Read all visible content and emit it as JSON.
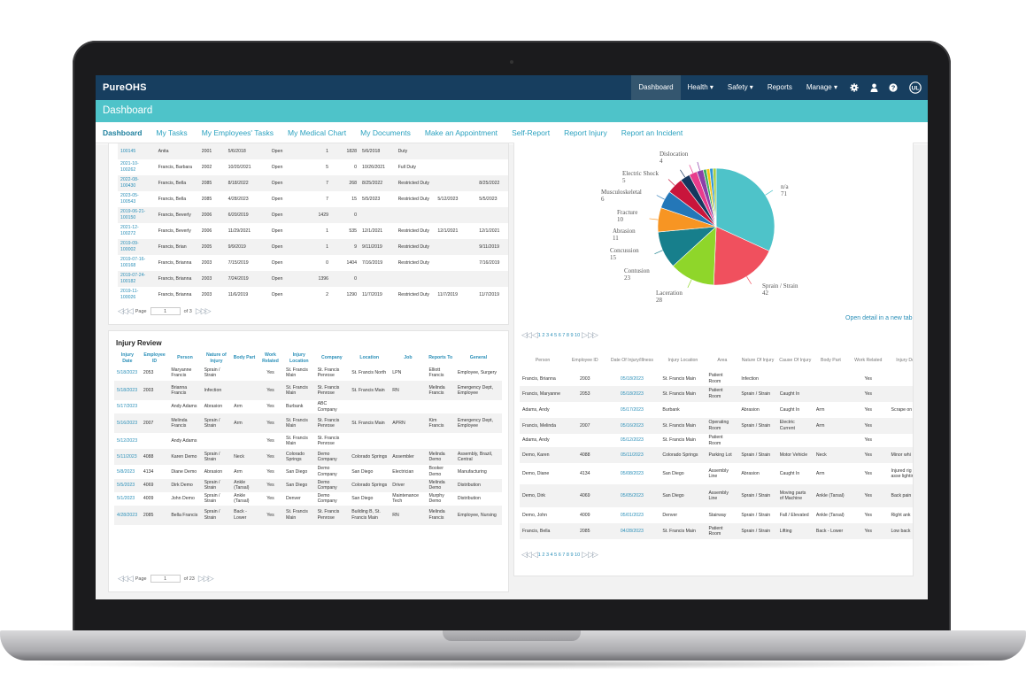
{
  "app": {
    "logo": "PureOHS",
    "nav": [
      {
        "label": "Dashboard",
        "active": true
      },
      {
        "label": "Health ▾"
      },
      {
        "label": "Safety ▾"
      },
      {
        "label": "Reports"
      },
      {
        "label": "Manage ▾"
      }
    ],
    "nav_icons": [
      "gear-icon",
      "user-icon",
      "help-icon",
      "ul-logo-icon"
    ],
    "page_title": "Dashboard",
    "accent": "#4ec3c9",
    "navbar_color": "#173e5f"
  },
  "tabs": [
    "Dashboard",
    "My Tasks",
    "My Employees' Tasks",
    "My Medical Chart",
    "My Documents",
    "Make an Appointment",
    "Self-Report",
    "Report Injury",
    "Report an Incident"
  ],
  "top_left_table": {
    "rows": [
      [
        "100145",
        "Anita",
        "2001",
        "5/6/2018",
        "Open",
        "1",
        "1828",
        "5/6/2018",
        "Duty",
        "",
        ""
      ],
      [
        "2021-10-100262",
        "Francis, Barbara",
        "2002",
        "10/20/2021",
        "Open",
        "5",
        "0",
        "10/26/2021",
        "Full Duty",
        "",
        ""
      ],
      [
        "2022-08-100430",
        "Francis, Bella",
        "2085",
        "8/18/2022",
        "Open",
        "7",
        "268",
        "8/25/2022",
        "Restricted Duty",
        "",
        "8/25/2022"
      ],
      [
        "2023-05-100543",
        "Francis, Bella",
        "2085",
        "4/28/2023",
        "Open",
        "7",
        "15",
        "5/5/2023",
        "Restricted Duty",
        "5/12/2023",
        "5/5/2023"
      ],
      [
        "2019-06-21-100150",
        "Francis, Beverly",
        "2006",
        "6/20/2019",
        "Open",
        "1429",
        "0",
        "",
        "",
        "",
        ""
      ],
      [
        "2021-12-100272",
        "Francis, Beverly",
        "2006",
        "11/29/2021",
        "Open",
        "1",
        "535",
        "12/1/2021",
        "Restricted Duty",
        "12/1/2021",
        "12/1/2021"
      ],
      [
        "2019-09-100002",
        "Francis, Brian",
        "2005",
        "9/9/2019",
        "Open",
        "1",
        "9",
        "9/11/2019",
        "Restricted Duty",
        "",
        "9/11/2019"
      ],
      [
        "2019-07-16-100168",
        "Francis, Brianna",
        "2003",
        "7/15/2019",
        "Open",
        "0",
        "1404",
        "7/16/2019",
        "Restricted Duty",
        "",
        "7/16/2019"
      ],
      [
        "2019-07-24-100182",
        "Francis, Brianna",
        "2003",
        "7/24/2019",
        "Open",
        "1396",
        "0",
        "",
        "",
        "",
        ""
      ],
      [
        "2019-11-100026",
        "Francis, Brianna",
        "2003",
        "11/6/2019",
        "Open",
        "2",
        "1290",
        "11/7/2019",
        "Restricted Duty",
        "11/7/2019",
        "11/7/2019"
      ]
    ],
    "pager": {
      "label": "Page",
      "page": "1",
      "of": "of 3"
    }
  },
  "injury_review": {
    "title": "Injury Review",
    "columns": [
      "Injury Date",
      "Employee ID",
      "Person",
      "Nature of Injury",
      "Body Part",
      "Work Related",
      "Injury Location",
      "Company",
      "Location",
      "Job",
      "Reports To",
      "General"
    ],
    "rows": [
      [
        "5/18/2023",
        "2053",
        "Maryanne Francis",
        "Sprain / Strain",
        "",
        "Yes",
        "St. Francis Main",
        "St. Francis Penrose",
        "St. Francis North",
        "LPN",
        "Elliott Francis",
        "Employee, Surgery"
      ],
      [
        "5/18/2023",
        "2003",
        "Brianna Francis",
        "Infection",
        "",
        "Yes",
        "St. Francis Main",
        "St. Francis Penrose",
        "St. Francis Main",
        "RN",
        "Melinda Francis",
        "Emergency Dept, Employee"
      ],
      [
        "5/17/2023",
        "",
        "Andy Adams",
        "Abrasion",
        "Arm",
        "Yes",
        "Burbank",
        "ABC Company",
        "",
        "",
        "",
        ""
      ],
      [
        "5/16/2023",
        "2007",
        "Melinda Francis",
        "Sprain / Strain",
        "Arm",
        "Yes",
        "St. Francis Main",
        "St. Francis Penrose",
        "St. Francis Main",
        "APRN",
        "Kim Francis",
        "Emergency Dept, Employee"
      ],
      [
        "5/12/2023",
        "",
        "Andy Adams",
        "",
        "",
        "Yes",
        "St. Francis Main",
        "St. Francis Penrose",
        "",
        "",
        "",
        ""
      ],
      [
        "5/11/2023",
        "4088",
        "Karen Demo",
        "Sprain / Strain",
        "Neck",
        "Yes",
        "Colorado Springs",
        "Demo Company",
        "Colorado Springs",
        "Assembler",
        "Melinda Demo",
        "Assembly, Brazil, Central"
      ],
      [
        "5/8/2023",
        "4134",
        "Diane Demo",
        "Abrasion",
        "Arm",
        "Yes",
        "San Diego",
        "Demo Company",
        "San Diego",
        "Electrician",
        "Booker Demo",
        "Manufacturing"
      ],
      [
        "5/5/2023",
        "4069",
        "Dirk Demo",
        "Sprain / Strain",
        "Ankle (Tarsal)",
        "Yes",
        "San Diego",
        "Demo Company",
        "Colorado Springs",
        "Driver",
        "Melinda Demo",
        "Distribution"
      ],
      [
        "5/1/2023",
        "4009",
        "John Demo",
        "Sprain / Strain",
        "Ankle (Tarsal)",
        "Yes",
        "Denver",
        "Demo Company",
        "San Diego",
        "Maintenance Tech",
        "Murphy Demo",
        "Distribution"
      ],
      [
        "4/28/2023",
        "2085",
        "Bella Francis",
        "Sprain / Strain",
        "Back - Lower",
        "Yes",
        "St. Francis Main",
        "St. Francis Penrose",
        "Building B, St. Francis Main",
        "RN",
        "Melinda Francis",
        "Employee, Nursing"
      ]
    ],
    "pager": {
      "label": "Page",
      "page": "1",
      "of": "of 23"
    }
  },
  "chart_data": {
    "type": "pie",
    "slices": [
      {
        "label": "n/a",
        "value": 71,
        "color": "#4ec3c9"
      },
      {
        "label": "Sprain / Strain",
        "value": 42,
        "color": "#f0505e"
      },
      {
        "label": "Laceration",
        "value": 28,
        "color": "#8fd62a"
      },
      {
        "label": "Contusion",
        "value": 23,
        "color": "#177f8c"
      },
      {
        "label": "Concussion",
        "value": 15,
        "color": "#f79523"
      },
      {
        "label": "Abrasion",
        "value": 11,
        "color": "#2477b8"
      },
      {
        "label": "Fracture",
        "value": 10,
        "color": "#c9153b"
      },
      {
        "label": "Musculoskeletal",
        "value": 6,
        "color": "#15375e"
      },
      {
        "label": "Electric Shock",
        "value": 5,
        "color": "#e83c8c"
      },
      {
        "label": "Dislocation",
        "value": 4,
        "color": "#8b3fa8"
      },
      {
        "label": "",
        "value": 2,
        "color": "#3fb060"
      },
      {
        "label": "",
        "value": 2,
        "color": "#f5c518"
      },
      {
        "label": "",
        "value": 2,
        "color": "#2f95d8"
      },
      {
        "label": "",
        "value": 2,
        "color": "#a8d048"
      }
    ]
  },
  "right_panel": {
    "open_detail": "Open detail in a new tab",
    "page_numbers": "1 2 3 4 5 6 7 8 9 10",
    "columns": [
      "Person",
      "Employee ID",
      "Date Of Injury/Illness",
      "Injury Location",
      "Area",
      "Nature Of Injury",
      "Cause Of Injury",
      "Body Part",
      "Work Related",
      "Injury Desc"
    ],
    "rows": [
      [
        "Francis, Brianna",
        "2003",
        "05/18/2023",
        "St. Francis Main",
        "Patient Room",
        "Infection",
        "",
        "",
        "Yes",
        ""
      ],
      [
        "Francis, Maryanne",
        "2053",
        "05/18/2023",
        "St. Francis Main",
        "Patient Room",
        "Sprain / Strain",
        "Caught In",
        "",
        "Yes",
        ""
      ],
      [
        "Adams, Andy",
        "",
        "05/17/2023",
        "Burbank",
        "",
        "Abrasion",
        "Caught In",
        "Arm",
        "Yes",
        "Scrape on arm"
      ],
      [
        "Francis, Melinda",
        "2007",
        "05/16/2023",
        "St. Francis Main",
        "Operating Room",
        "Sprain / Strain",
        "Electric Current",
        "Arm",
        "Yes",
        ""
      ],
      [
        "Adams, Andy",
        "",
        "05/12/2023",
        "St. Francis Main",
        "Patient Room",
        "",
        "",
        "",
        "Yes",
        ""
      ],
      [
        "Demo, Karen",
        "4088",
        "05/11/2023",
        "Colorado Springs",
        "Parking Lot",
        "Sprain / Strain",
        "Motor Vehicle",
        "Neck",
        "Yes",
        "Minor whi"
      ],
      [
        "Demo, Diane",
        "4134",
        "05/08/2023",
        "San Diego",
        "Assembly Line",
        "Abrasion",
        "Caught In",
        "Arm",
        "Yes",
        "Injured rig when asse lighting p"
      ],
      [
        "Demo, Dirk",
        "4069",
        "05/05/2023",
        "San Diego",
        "Assembly Line",
        "Sprain / Strain",
        "Moving parts of Machine",
        "Ankle (Tarsal)",
        "Yes",
        "Back pain"
      ],
      [
        "Demo, John",
        "4009",
        "05/01/2023",
        "Denver",
        "Stairway",
        "Sprain / Strain",
        "Fall / Elevated",
        "Ankle (Tarsal)",
        "Yes",
        "Right ank"
      ],
      [
        "Francis, Bella",
        "2085",
        "04/28/2023",
        "St. Francis Main",
        "Patient Room",
        "Sprain / Strain",
        "Lifting",
        "Back - Lower",
        "Yes",
        "Low back"
      ]
    ]
  }
}
